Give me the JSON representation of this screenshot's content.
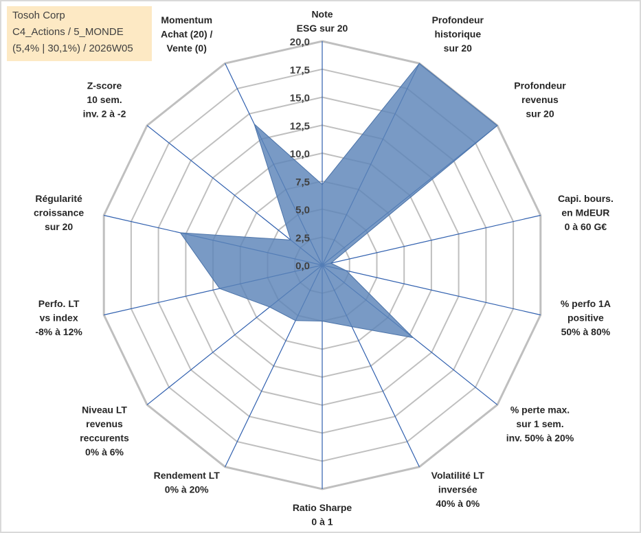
{
  "info": {
    "line1": "Tosoh Corp",
    "line2": "C4_Actions / 5_MONDE",
    "line3": "(5,4% | 30,1%) / 2026W05"
  },
  "chart_data": {
    "type": "radar",
    "title": "",
    "rmin": 0,
    "rmax": 20,
    "ticks": [
      0,
      2.5,
      5,
      7.5,
      10,
      12.5,
      15,
      17.5,
      20
    ],
    "tick_labels": [
      "0,0",
      "2,5",
      "5,0",
      "7,5",
      "10,0",
      "12,5",
      "15,0",
      "17,5",
      "20,0"
    ],
    "colors": {
      "fill": "#5b84b8",
      "fill_opacity": 0.82,
      "stroke": "#4a72a8",
      "grid": "#bfbfbf",
      "spoke": "#2f5fae"
    },
    "axes": [
      {
        "label": [
          "Note",
          "ESG sur 20"
        ],
        "value": 7.2
      },
      {
        "label": [
          "Profondeur",
          "historique",
          "sur 20"
        ],
        "value": 20
      },
      {
        "label": [
          "Profondeur",
          "revenus",
          "sur 20"
        ],
        "value": 20
      },
      {
        "label": [
          "Capi. bours.",
          "en MdEUR",
          "0 à 60 G€"
        ],
        "value": 0.8
      },
      {
        "label": [
          "% perfo 1A",
          "positive",
          "50% à 80%"
        ],
        "value": 2.2
      },
      {
        "label": [
          "% perte max.",
          "sur 1 sem.",
          "inv. 50% à 20%"
        ],
        "value": 10.4
      },
      {
        "label": [
          "Volatilité LT",
          "inversée",
          "40% à 0%"
        ],
        "value": 6.1
      },
      {
        "label": [
          "Ratio Sharpe",
          "0 à 1"
        ],
        "value": 5.0
      },
      {
        "label": [
          "Rendement LT",
          "0% à 20%"
        ],
        "value": 5.5
      },
      {
        "label": [
          "Niveau LT",
          "revenus",
          "reccurents",
          "0% à 6%"
        ],
        "value": 6.0
      },
      {
        "label": [
          "Perfo. LT",
          "vs index",
          "-8% à 12%"
        ],
        "value": 9.4
      },
      {
        "label": [
          "Régularité",
          "croissance",
          "sur 20"
        ],
        "value": 13.0
      },
      {
        "label": [
          "Z-score",
          "10 sem.",
          "inv. 2 à -2"
        ],
        "value": 3.6
      },
      {
        "label": [
          "Momentum",
          "Achat (20) /",
          "Vente (0)"
        ],
        "value": 14.0
      }
    ]
  }
}
